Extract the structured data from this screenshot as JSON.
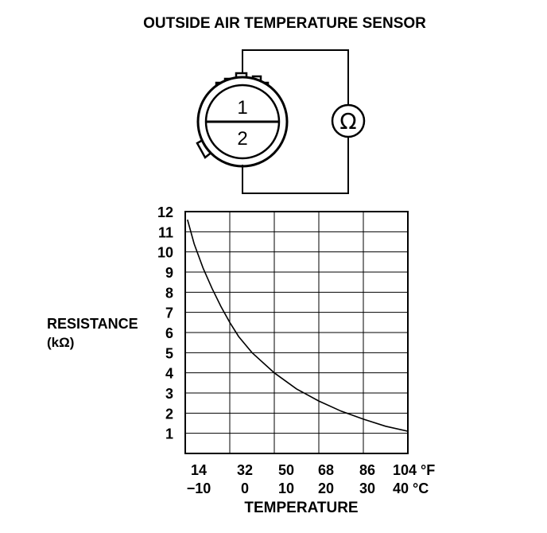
{
  "title": "OUTSIDE AIR TEMPERATURE SENSOR",
  "sensor": {
    "terminal_1": "1",
    "terminal_2": "2",
    "meter_symbol": "Ω",
    "meter_icon": "ohmmeter-icon"
  },
  "chart_data": {
    "type": "line",
    "ylabel_line1": "RESISTANCE",
    "ylabel_line2": "(kΩ)",
    "xlabel": "TEMPERATURE",
    "ylim": [
      0,
      12
    ],
    "y_ticks": [
      "1",
      "2",
      "3",
      "4",
      "5",
      "6",
      "7",
      "8",
      "9",
      "10",
      "11",
      "12"
    ],
    "x_ticks_f": [
      "14",
      "32",
      "50",
      "68",
      "86",
      "104 °F"
    ],
    "x_ticks_c": [
      "−10",
      "0",
      "10",
      "20",
      "30",
      "40 °C"
    ],
    "xlim_c": [
      -10,
      40
    ],
    "grid": true,
    "series": [
      {
        "x_c": [
          -9.5,
          -8,
          -6,
          -4,
          -2,
          0,
          2,
          5,
          10,
          15,
          20,
          25,
          30,
          35,
          40
        ],
        "y_kohm": [
          11.6,
          10.4,
          9.2,
          8.2,
          7.3,
          6.5,
          5.8,
          5.0,
          4.0,
          3.2,
          2.6,
          2.1,
          1.7,
          1.35,
          1.1
        ]
      }
    ]
  }
}
